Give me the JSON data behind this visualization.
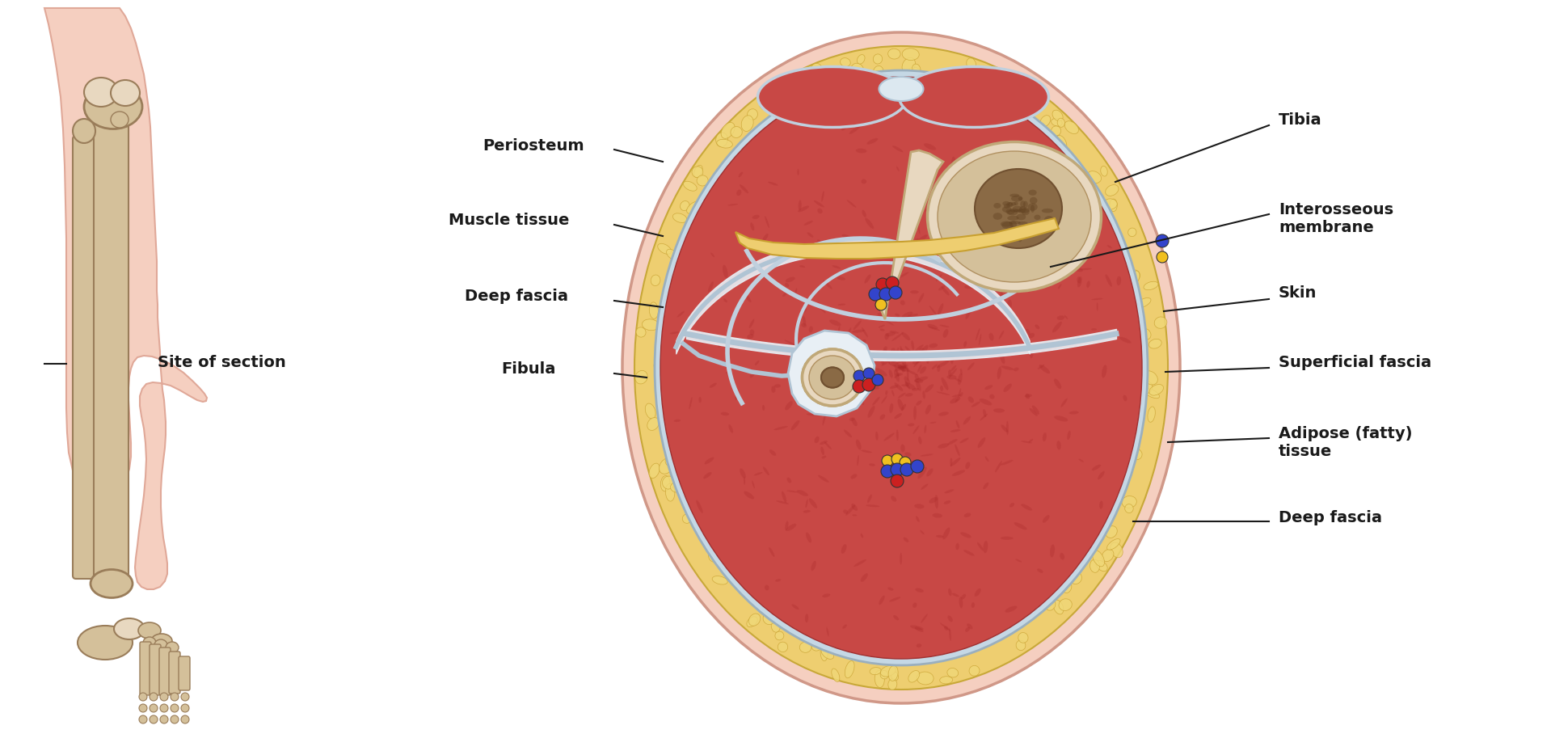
{
  "bg_color": "#ffffff",
  "skin_pink": "#f2bfad",
  "skin_outer": "#f5cfc0",
  "bone_tan": "#d4c09a",
  "bone_beige": "#e8d8c0",
  "bone_dark": "#9a7d5a",
  "bone_marrow": "#8a6a45",
  "muscle_red": "#c84845",
  "muscle_dark": "#b03535",
  "muscle_med": "#d05555",
  "fascia_blue": "#c5d8e5",
  "fascia_light": "#dce8f0",
  "fascia_white": "#e8eff5",
  "fat_yellow": "#eece70",
  "fat_light": "#f5e090",
  "fat_lobule": "#f0d878",
  "interosseous": "#dce8d0",
  "site_label": "Site of section",
  "left_labels": [
    "Periosteum",
    "Muscle tissue",
    "Deep fascia",
    "Fibula"
  ],
  "right_labels": [
    "Tibia",
    "Interosseous\nmembrane",
    "Skin",
    "Superficial fascia",
    "Adipose (fatty)\ntissue",
    "Deep fascia"
  ],
  "label_fontsize": 14,
  "label_fontweight": "bold"
}
